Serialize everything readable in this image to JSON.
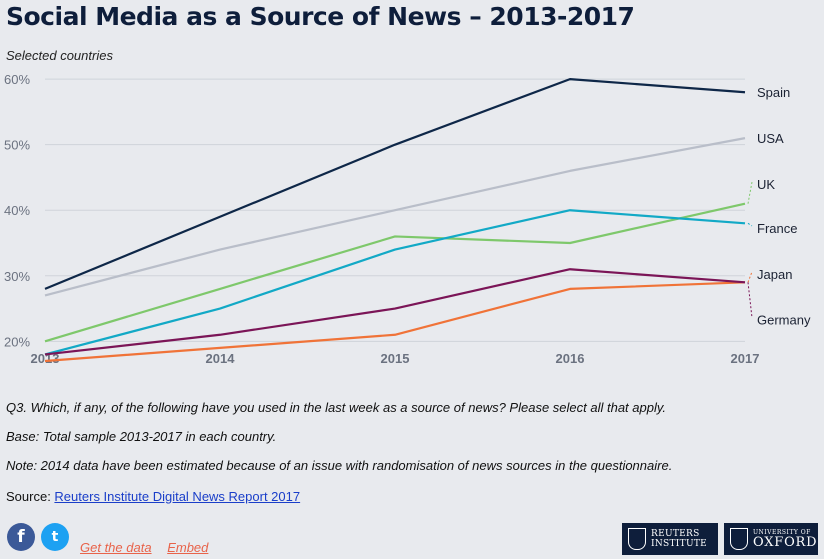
{
  "title": "Social Media as a Source of News – 2013-2017",
  "subtitle": "Selected countries",
  "chart_data": {
    "type": "line",
    "x": [
      "2013",
      "2014",
      "2015",
      "2016",
      "2017"
    ],
    "ylim": [
      17,
      62
    ],
    "yticks": [
      20,
      30,
      40,
      50,
      60
    ],
    "ytick_labels": [
      "20%",
      "30%",
      "40%",
      "50%",
      "60%"
    ],
    "grid": true,
    "series": [
      {
        "name": "Spain",
        "color": "#0e2748",
        "values": [
          28,
          39,
          50,
          60,
          58
        ],
        "label_y": 58
      },
      {
        "name": "USA",
        "color": "#b9bec9",
        "values": [
          27,
          34,
          40,
          46,
          51
        ],
        "label_y": 51
      },
      {
        "name": "UK",
        "color": "#7ec86b",
        "values": [
          20,
          28,
          36,
          35,
          41
        ],
        "label_y": 44
      },
      {
        "name": "France",
        "color": "#12a9c6",
        "values": [
          18,
          25,
          34,
          40,
          38
        ],
        "label_y": 37.3
      },
      {
        "name": "Japan",
        "color": "#f07338",
        "values": [
          17,
          19,
          21,
          28,
          29
        ],
        "label_y": 30.3
      },
      {
        "name": "Germany",
        "color": "#7b1557",
        "values": [
          18,
          21,
          25,
          31,
          29
        ],
        "label_y": 23.3
      }
    ]
  },
  "notes": [
    "Q3. Which, if any, of the following have you used in the last week as a source of news? Please select all that apply.",
    "Base: Total sample 2013-2017 in each country.",
    "Note: 2014 data have been estimated because of an issue with randomisation of news sources in the questionnaire."
  ],
  "source": {
    "label": "Source: ",
    "link": "Reuters Institute Digital News Report 2017"
  },
  "social": {
    "facebook": "f",
    "twitter": "t"
  },
  "links": {
    "get_data": "Get the data",
    "embed": "Embed"
  },
  "logos": {
    "reuters": [
      "REUTERS",
      "INSTITUTE"
    ],
    "oxford_small": "UNIVERSITY OF",
    "oxford_big": "OXFORD"
  },
  "icons": {
    "facebook": "facebook-icon",
    "twitter": "twitter-icon"
  }
}
